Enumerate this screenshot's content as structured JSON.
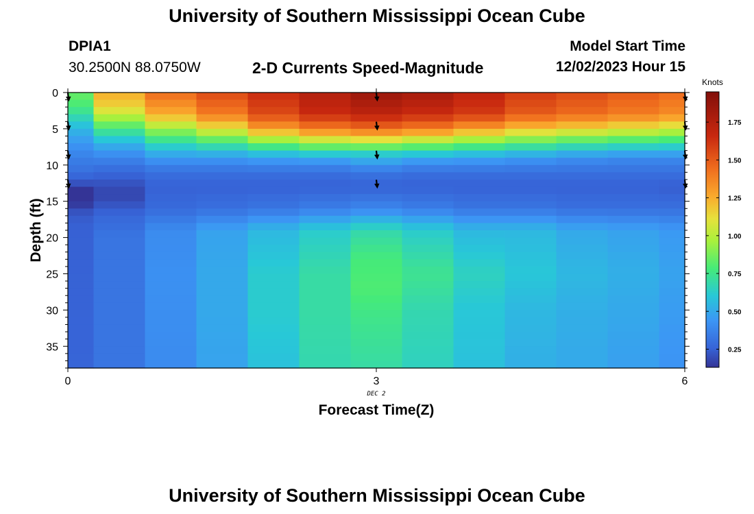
{
  "page": {
    "title": "University of Southern Mississippi Ocean Cube",
    "footer_title": "University of Southern Mississippi Ocean Cube",
    "station_id": "DPIA1",
    "station_coords": "30.2500N  88.0750W",
    "subtitle": "2-D Currents Speed-Magnitude",
    "model_start_label": "Model Start Time",
    "model_start_value": "12/02/2023 Hour 15"
  },
  "chart_data": {
    "type": "heatmap",
    "title": "2-D Currents Speed-Magnitude",
    "xlabel": "Forecast Time(Z)",
    "ylabel": "Depth (ft)",
    "xlim": [
      0,
      6
    ],
    "ylim": [
      0,
      38
    ],
    "y_inverted": true,
    "x_ticks": [
      0,
      3,
      6
    ],
    "y_ticks": [
      0,
      5,
      10,
      15,
      20,
      25,
      30,
      35
    ],
    "date_label": "DEC 2",
    "colorbar": {
      "unit": "Knots",
      "min": 0.13,
      "max": 1.95,
      "ticks": [
        "0.25",
        "0.50",
        "0.75",
        "1.00",
        "1.25",
        "1.50",
        "1.75"
      ],
      "tick_values": [
        0.25,
        0.5,
        0.75,
        1.0,
        1.25,
        1.5,
        1.75
      ]
    },
    "time_columns": [
      0,
      0.5,
      1,
      1.5,
      2,
      2.5,
      3,
      3.5,
      4,
      4.5,
      5,
      5.5,
      6
    ],
    "depth_profiles": [
      {
        "time": 0,
        "profile": [
          [
            0,
            0.85
          ],
          [
            2,
            0.78
          ],
          [
            5,
            0.55
          ],
          [
            7,
            0.44
          ],
          [
            9,
            0.36
          ],
          [
            11,
            0.3
          ],
          [
            13,
            0.18
          ],
          [
            14,
            0.02
          ],
          [
            15,
            0.1
          ],
          [
            16,
            0.2
          ],
          [
            18,
            0.25
          ],
          [
            38,
            0.26
          ]
        ]
      },
      {
        "time": 0.5,
        "profile": [
          [
            0,
            1.25
          ],
          [
            2,
            1.15
          ],
          [
            4,
            0.9
          ],
          [
            6,
            0.65
          ],
          [
            8,
            0.45
          ],
          [
            10,
            0.32
          ],
          [
            12,
            0.23
          ],
          [
            14,
            0.17
          ],
          [
            15,
            0.2
          ],
          [
            17,
            0.27
          ],
          [
            20,
            0.32
          ],
          [
            38,
            0.32
          ]
        ]
      },
      {
        "time": 1,
        "profile": [
          [
            0,
            1.45
          ],
          [
            3,
            1.25
          ],
          [
            5,
            0.95
          ],
          [
            7,
            0.68
          ],
          [
            9,
            0.45
          ],
          [
            11,
            0.3
          ],
          [
            13,
            0.25
          ],
          [
            16,
            0.28
          ],
          [
            19,
            0.4
          ],
          [
            25,
            0.42
          ],
          [
            38,
            0.4
          ]
        ]
      },
      {
        "time": 1.5,
        "profile": [
          [
            0,
            1.55
          ],
          [
            3,
            1.4
          ],
          [
            5,
            1.1
          ],
          [
            7,
            0.75
          ],
          [
            9,
            0.45
          ],
          [
            11,
            0.3
          ],
          [
            13,
            0.25
          ],
          [
            16,
            0.3
          ],
          [
            19,
            0.48
          ],
          [
            25,
            0.5
          ],
          [
            30,
            0.5
          ],
          [
            38,
            0.48
          ]
        ]
      },
      {
        "time": 2,
        "profile": [
          [
            0,
            1.65
          ],
          [
            3,
            1.55
          ],
          [
            5,
            1.3
          ],
          [
            7,
            0.85
          ],
          [
            9,
            0.48
          ],
          [
            11,
            0.3
          ],
          [
            13,
            0.25
          ],
          [
            16,
            0.32
          ],
          [
            19,
            0.55
          ],
          [
            25,
            0.62
          ],
          [
            30,
            0.62
          ],
          [
            38,
            0.58
          ]
        ]
      },
      {
        "time": 2.5,
        "profile": [
          [
            0,
            1.75
          ],
          [
            3,
            1.65
          ],
          [
            5,
            1.4
          ],
          [
            7,
            0.95
          ],
          [
            9,
            0.5
          ],
          [
            11,
            0.3
          ],
          [
            13,
            0.25
          ],
          [
            16,
            0.35
          ],
          [
            19,
            0.62
          ],
          [
            25,
            0.7
          ],
          [
            30,
            0.7
          ],
          [
            38,
            0.68
          ]
        ]
      },
      {
        "time": 3,
        "profile": [
          [
            0,
            1.85
          ],
          [
            3,
            1.7
          ],
          [
            5,
            1.45
          ],
          [
            7,
            1.0
          ],
          [
            8,
            0.7
          ],
          [
            9,
            0.55
          ],
          [
            11,
            0.32
          ],
          [
            13,
            0.25
          ],
          [
            16,
            0.38
          ],
          [
            19,
            0.68
          ],
          [
            23,
            0.78
          ],
          [
            27,
            0.8
          ],
          [
            31,
            0.75
          ],
          [
            38,
            0.7
          ]
        ]
      },
      {
        "time": 3.5,
        "profile": [
          [
            0,
            1.8
          ],
          [
            3,
            1.65
          ],
          [
            5,
            1.4
          ],
          [
            7,
            0.92
          ],
          [
            9,
            0.5
          ],
          [
            11,
            0.3
          ],
          [
            13,
            0.25
          ],
          [
            16,
            0.35
          ],
          [
            19,
            0.62
          ],
          [
            25,
            0.74
          ],
          [
            30,
            0.68
          ],
          [
            38,
            0.65
          ]
        ]
      },
      {
        "time": 4,
        "profile": [
          [
            0,
            1.7
          ],
          [
            3,
            1.6
          ],
          [
            5,
            1.3
          ],
          [
            7,
            0.85
          ],
          [
            9,
            0.48
          ],
          [
            11,
            0.3
          ],
          [
            13,
            0.25
          ],
          [
            16,
            0.32
          ],
          [
            19,
            0.55
          ],
          [
            25,
            0.65
          ],
          [
            30,
            0.6
          ],
          [
            38,
            0.58
          ]
        ]
      },
      {
        "time": 4.5,
        "profile": [
          [
            0,
            1.6
          ],
          [
            3,
            1.5
          ],
          [
            5,
            1.2
          ],
          [
            7,
            0.8
          ],
          [
            9,
            0.45
          ],
          [
            11,
            0.3
          ],
          [
            13,
            0.25
          ],
          [
            16,
            0.32
          ],
          [
            19,
            0.55
          ],
          [
            25,
            0.6
          ],
          [
            30,
            0.55
          ],
          [
            38,
            0.52
          ]
        ]
      },
      {
        "time": 5,
        "profile": [
          [
            0,
            1.55
          ],
          [
            3,
            1.45
          ],
          [
            5,
            1.15
          ],
          [
            7,
            0.75
          ],
          [
            9,
            0.42
          ],
          [
            11,
            0.3
          ],
          [
            13,
            0.25
          ],
          [
            16,
            0.3
          ],
          [
            19,
            0.5
          ],
          [
            25,
            0.55
          ],
          [
            30,
            0.52
          ],
          [
            38,
            0.5
          ]
        ]
      },
      {
        "time": 5.5,
        "profile": [
          [
            0,
            1.5
          ],
          [
            3,
            1.4
          ],
          [
            5,
            1.1
          ],
          [
            7,
            0.72
          ],
          [
            9,
            0.4
          ],
          [
            11,
            0.3
          ],
          [
            13,
            0.25
          ],
          [
            16,
            0.3
          ],
          [
            19,
            0.48
          ],
          [
            25,
            0.52
          ],
          [
            30,
            0.5
          ],
          [
            38,
            0.47
          ]
        ]
      },
      {
        "time": 6,
        "profile": [
          [
            0,
            1.45
          ],
          [
            3,
            1.35
          ],
          [
            5,
            1.05
          ],
          [
            7,
            0.7
          ],
          [
            9,
            0.4
          ],
          [
            11,
            0.3
          ],
          [
            13,
            0.24
          ],
          [
            16,
            0.3
          ],
          [
            19,
            0.45
          ],
          [
            25,
            0.48
          ],
          [
            30,
            0.46
          ],
          [
            38,
            0.43
          ]
        ]
      }
    ],
    "direction_arrows": [
      {
        "time": 0,
        "depth": 0.5
      },
      {
        "time": 0,
        "depth": 4.5
      },
      {
        "time": 0,
        "depth": 8.5
      },
      {
        "time": 0,
        "depth": 12.5
      },
      {
        "time": 3,
        "depth": 0.5
      },
      {
        "time": 3,
        "depth": 4.5
      },
      {
        "time": 3,
        "depth": 8.5
      },
      {
        "time": 3,
        "depth": 12.5
      },
      {
        "time": 6,
        "depth": 0.5
      },
      {
        "time": 6,
        "depth": 4.5
      },
      {
        "time": 6,
        "depth": 8.5
      },
      {
        "time": 6,
        "depth": 12.5
      }
    ]
  }
}
